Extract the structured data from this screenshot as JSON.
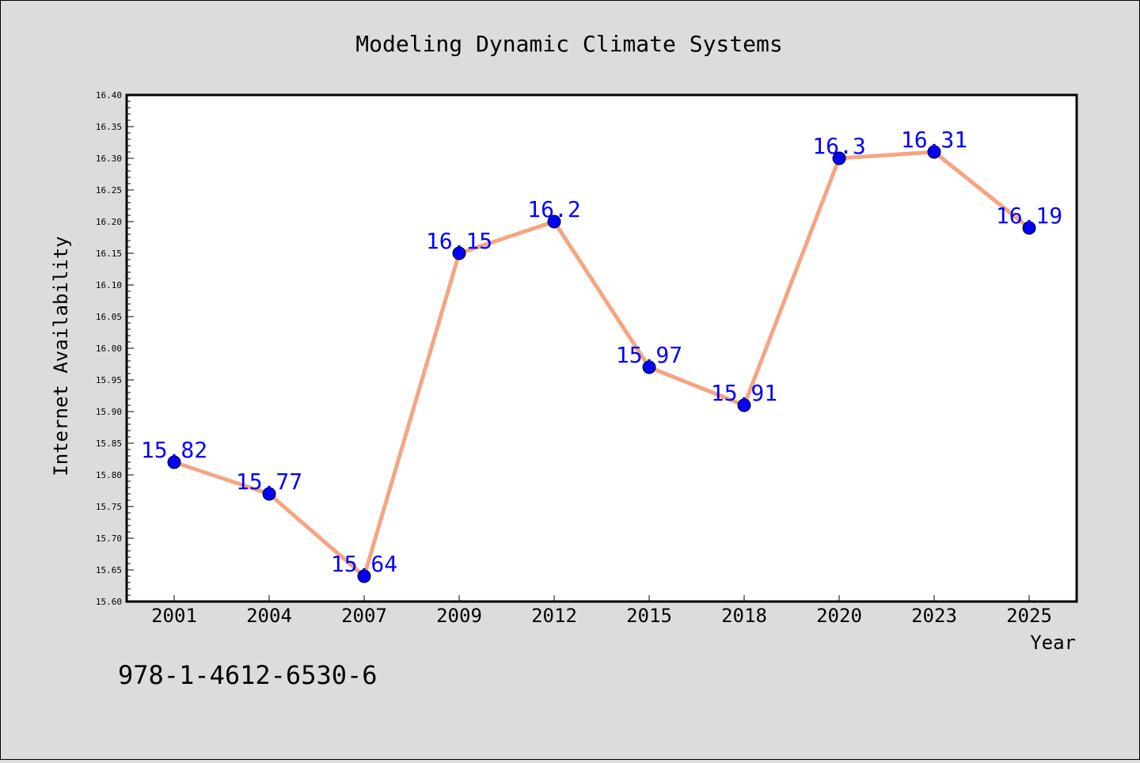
{
  "chart_data": {
    "type": "line",
    "title": "Modeling Dynamic Climate Systems",
    "xlabel": "Year",
    "ylabel": "Internet Availability",
    "categories": [
      "2001",
      "2004",
      "2007",
      "2009",
      "2012",
      "2015",
      "2018",
      "2020",
      "2023",
      "2025"
    ],
    "values": [
      15.82,
      15.77,
      15.64,
      16.15,
      16.2,
      15.97,
      15.91,
      16.3,
      16.31,
      16.19
    ],
    "data_labels": [
      "15.82",
      "15.77",
      "15.64",
      "16.15",
      "16.2",
      "15.97",
      "15.91",
      "16.3",
      "16.31",
      "16.19"
    ],
    "ylim": [
      15.6,
      16.4
    ],
    "y_ticks": [
      "15.60",
      "15.65",
      "15.70",
      "15.75",
      "15.80",
      "15.85",
      "15.90",
      "15.95",
      "16.00",
      "16.05",
      "16.10",
      "16.15",
      "16.20",
      "16.25",
      "16.30",
      "16.35",
      "16.40"
    ],
    "grid": false,
    "legend": "none",
    "colors": {
      "line": "#f4a582",
      "marker": "#0000ff",
      "label": "#0000ff",
      "plot_bg": "#ffffff",
      "figure_bg": "#dcdcdc"
    }
  },
  "footer_text": "978-1-4612-6530-6"
}
